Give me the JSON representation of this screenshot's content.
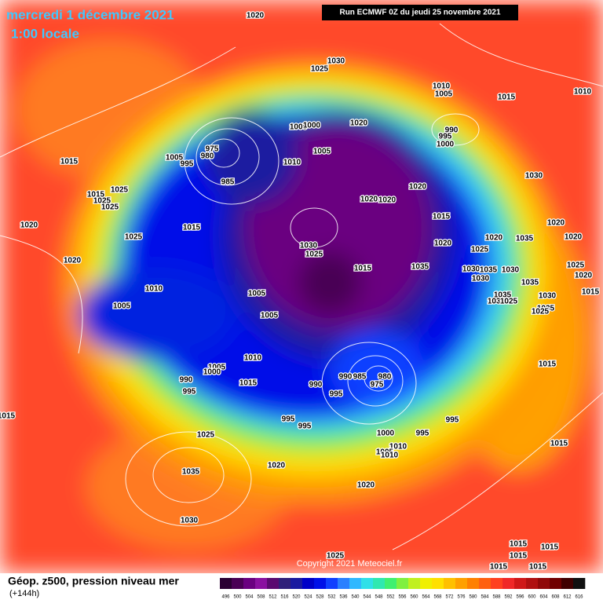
{
  "header": {
    "date": "mercredi 1 décembre 2021",
    "time": "1:00 locale",
    "run": "Run ECMWF 0Z du jeudi 25 novembre 2021"
  },
  "footer": {
    "title": "Géop. z500, pression niveau mer",
    "lead": "(+144h)",
    "copyright": "Copyright 2021 Meteociel.fr"
  },
  "scale": {
    "labels": [
      496,
      500,
      504,
      508,
      512,
      516,
      520,
      524,
      528,
      532,
      536,
      540,
      544,
      548,
      552,
      556,
      560,
      564,
      568,
      572,
      576,
      580,
      584,
      588,
      592,
      596,
      600,
      604,
      608,
      612,
      616
    ],
    "colors": [
      "#2b0033",
      "#4a0055",
      "#6a0080",
      "#8a10a0",
      "#5a0a70",
      "#30207a",
      "#1a1aa0",
      "#0000c8",
      "#0010e8",
      "#1040ff",
      "#2a80ff",
      "#30b8ff",
      "#30e0e8",
      "#30e8b0",
      "#40f070",
      "#80f040",
      "#c0f020",
      "#f0f000",
      "#ffe000",
      "#ffc000",
      "#ffa000",
      "#ff8000",
      "#ff6010",
      "#ff4020",
      "#f02828",
      "#d01818",
      "#b01010",
      "#900808",
      "#700000",
      "#400000",
      "#101010"
    ]
  },
  "isobars": {
    "labels": [
      1020,
      1030,
      1025,
      1010,
      1005,
      1015,
      1010,
      1020,
      1005,
      1000,
      990,
      995,
      1000,
      975,
      980,
      1005,
      995,
      1015,
      1010,
      1005,
      985,
      1030,
      1020,
      1020,
      1020,
      1015,
      1025,
      1025,
      1025,
      1015,
      1015,
      1020,
      1025,
      1030,
      1025,
      1020,
      1020,
      1025,
      1035,
      1020,
      1020,
      1015,
      1035,
      1030,
      1035,
      1030,
      1025,
      1020,
      1020,
      1030,
      1010,
      1005,
      1035,
      1035,
      1005,
      1035,
      1025,
      1030,
      1035,
      1025,
      1015,
      1005,
      1010,
      1005,
      1000,
      1015,
      990,
      995,
      990,
      990,
      995,
      985,
      980,
      975,
      1015,
      1015,
      995,
      995,
      995,
      995,
      1000,
      1025,
      1010,
      1005,
      1010,
      1015,
      1020,
      1035,
      1020,
      1030,
      1025,
      1015,
      1015,
      1015,
      1015,
      1015
    ]
  }
}
